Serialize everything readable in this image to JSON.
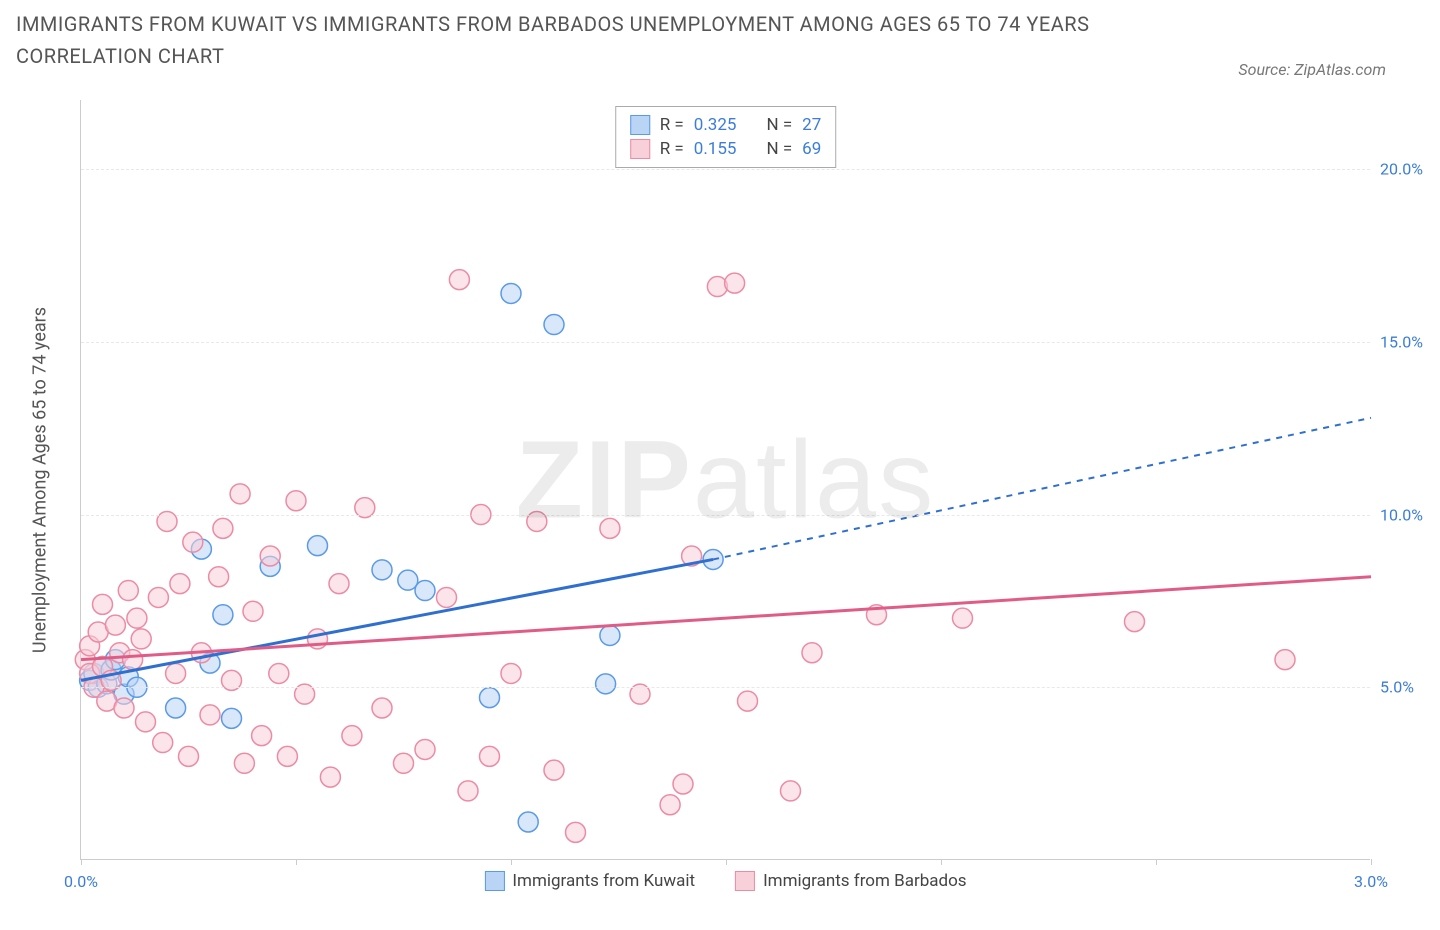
{
  "title": "IMMIGRANTS FROM KUWAIT VS IMMIGRANTS FROM BARBADOS UNEMPLOYMENT AMONG AGES 65 TO 74 YEARS CORRELATION CHART",
  "source": "Source: ZipAtlas.com",
  "watermark_a": "ZIP",
  "watermark_b": "atlas",
  "chart": {
    "type": "scatter",
    "ylabel": "Unemployment Among Ages 65 to 74 years",
    "background_color": "#ffffff",
    "grid_color": "#e8e8e8",
    "xlim": [
      0.0,
      3.0
    ],
    "ylim": [
      0.0,
      22.0
    ],
    "yticks": [
      5.0,
      10.0,
      15.0,
      20.0
    ],
    "ytick_labels": [
      "5.0%",
      "10.0%",
      "15.0%",
      "20.0%"
    ],
    "xticks": [
      0.0,
      0.5,
      1.0,
      1.5,
      2.0,
      2.5,
      3.0
    ],
    "xtick_labels": [
      "0.0%",
      "",
      "",
      "",
      "",
      "",
      "3.0%"
    ],
    "marker_radius": 10,
    "marker_stroke_width": 1.5,
    "trend_width": 3,
    "series": [
      {
        "name": "Immigrants from Kuwait",
        "color_fill": "#b9d4f5",
        "color_stroke": "#5a9ae6",
        "trend_color": "#2f6fd0",
        "R": "0.325",
        "N": "27",
        "trend_solid": {
          "x1": 0.0,
          "y1": 5.2,
          "x2": 1.47,
          "y2": 8.7
        },
        "trend_dashed": {
          "x1": 1.47,
          "y1": 8.7,
          "x2": 3.0,
          "y2": 12.8
        },
        "points": [
          [
            0.02,
            5.2
          ],
          [
            0.03,
            5.4
          ],
          [
            0.04,
            5.0
          ],
          [
            0.05,
            5.6
          ],
          [
            0.06,
            5.1
          ],
          [
            0.07,
            5.5
          ],
          [
            0.08,
            5.8
          ],
          [
            0.1,
            4.8
          ],
          [
            0.11,
            5.3
          ],
          [
            0.13,
            5.0
          ],
          [
            0.22,
            4.4
          ],
          [
            0.28,
            9.0
          ],
          [
            0.3,
            5.7
          ],
          [
            0.33,
            7.1
          ],
          [
            0.35,
            4.1
          ],
          [
            0.44,
            8.5
          ],
          [
            0.55,
            9.1
          ],
          [
            0.7,
            8.4
          ],
          [
            0.76,
            8.1
          ],
          [
            0.8,
            7.8
          ],
          [
            0.95,
            4.7
          ],
          [
            1.0,
            16.4
          ],
          [
            1.04,
            1.1
          ],
          [
            1.1,
            15.5
          ],
          [
            1.22,
            5.1
          ],
          [
            1.23,
            6.5
          ],
          [
            1.47,
            8.7
          ]
        ]
      },
      {
        "name": "Immigrants from Barbados",
        "color_fill": "#f8d0d9",
        "color_stroke": "#ec8ba4",
        "trend_color": "#e05b86",
        "R": "0.155",
        "N": "69",
        "trend_solid": {
          "x1": 0.0,
          "y1": 5.8,
          "x2": 3.0,
          "y2": 8.2
        },
        "trend_dashed": null,
        "points": [
          [
            0.01,
            5.8
          ],
          [
            0.02,
            5.4
          ],
          [
            0.02,
            6.2
          ],
          [
            0.03,
            5.0
          ],
          [
            0.04,
            6.6
          ],
          [
            0.05,
            5.6
          ],
          [
            0.05,
            7.4
          ],
          [
            0.06,
            4.6
          ],
          [
            0.07,
            5.2
          ],
          [
            0.08,
            6.8
          ],
          [
            0.09,
            6.0
          ],
          [
            0.1,
            4.4
          ],
          [
            0.11,
            7.8
          ],
          [
            0.12,
            5.8
          ],
          [
            0.13,
            7.0
          ],
          [
            0.14,
            6.4
          ],
          [
            0.15,
            4.0
          ],
          [
            0.18,
            7.6
          ],
          [
            0.19,
            3.4
          ],
          [
            0.2,
            9.8
          ],
          [
            0.22,
            5.4
          ],
          [
            0.23,
            8.0
          ],
          [
            0.25,
            3.0
          ],
          [
            0.26,
            9.2
          ],
          [
            0.28,
            6.0
          ],
          [
            0.3,
            4.2
          ],
          [
            0.32,
            8.2
          ],
          [
            0.33,
            9.6
          ],
          [
            0.35,
            5.2
          ],
          [
            0.37,
            10.6
          ],
          [
            0.38,
            2.8
          ],
          [
            0.4,
            7.2
          ],
          [
            0.42,
            3.6
          ],
          [
            0.44,
            8.8
          ],
          [
            0.46,
            5.4
          ],
          [
            0.48,
            3.0
          ],
          [
            0.5,
            10.4
          ],
          [
            0.52,
            4.8
          ],
          [
            0.55,
            6.4
          ],
          [
            0.58,
            2.4
          ],
          [
            0.6,
            8.0
          ],
          [
            0.63,
            3.6
          ],
          [
            0.66,
            10.2
          ],
          [
            0.7,
            4.4
          ],
          [
            0.75,
            2.8
          ],
          [
            0.8,
            3.2
          ],
          [
            0.85,
            7.6
          ],
          [
            0.88,
            16.8
          ],
          [
            0.9,
            2.0
          ],
          [
            0.93,
            10.0
          ],
          [
            0.95,
            3.0
          ],
          [
            1.0,
            5.4
          ],
          [
            1.06,
            9.8
          ],
          [
            1.1,
            2.6
          ],
          [
            1.15,
            0.8
          ],
          [
            1.23,
            9.6
          ],
          [
            1.3,
            4.8
          ],
          [
            1.37,
            1.6
          ],
          [
            1.4,
            2.2
          ],
          [
            1.42,
            8.8
          ],
          [
            1.48,
            16.6
          ],
          [
            1.52,
            16.7
          ],
          [
            1.55,
            4.6
          ],
          [
            1.65,
            2.0
          ],
          [
            1.7,
            6.0
          ],
          [
            1.85,
            7.1
          ],
          [
            2.05,
            7.0
          ],
          [
            2.45,
            6.9
          ],
          [
            2.8,
            5.8
          ]
        ]
      }
    ]
  }
}
